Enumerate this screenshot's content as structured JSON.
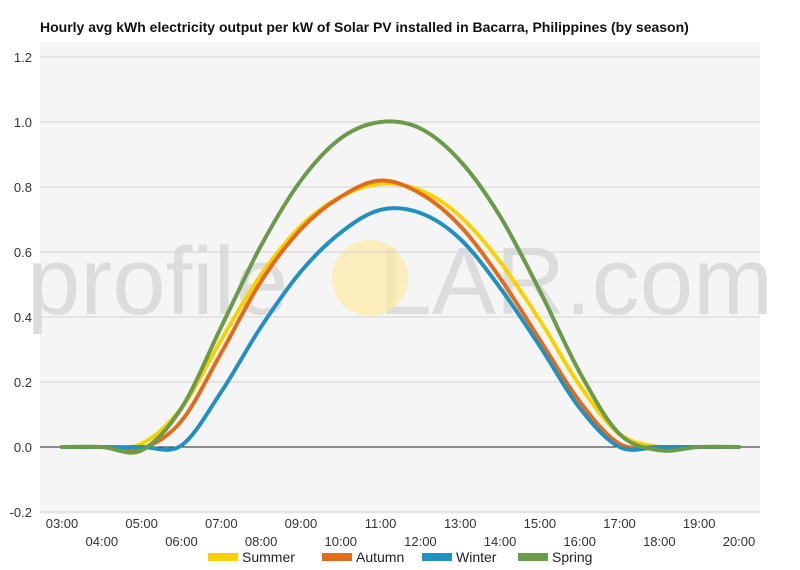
{
  "chart_data": {
    "type": "line",
    "title": "Hourly avg kWh electricity output per kW of Solar PV installed in Bacarra, Philippines (by season)",
    "xlabel": "",
    "ylabel": "",
    "ylim": [
      -0.2,
      1.2
    ],
    "yticks": [
      -0.2,
      0.0,
      0.2,
      0.4,
      0.6,
      0.8,
      1.0,
      1.2
    ],
    "x": [
      3,
      4,
      5,
      6,
      7,
      8,
      9,
      10,
      11,
      12,
      13,
      14,
      15,
      16,
      17,
      18,
      19,
      20
    ],
    "xtick_labels": [
      "03:00",
      "04:00",
      "05:00",
      "06:00",
      "07:00",
      "08:00",
      "09:00",
      "10:00",
      "11:00",
      "12:00",
      "13:00",
      "14:00",
      "15:00",
      "16:00",
      "17:00",
      "18:00",
      "19:00",
      "20:00"
    ],
    "grid": true,
    "legend_position": "bottom",
    "watermark": "profileSOLAR.com",
    "series": [
      {
        "name": "Summer",
        "color": "#f5d200",
        "values": [
          0.0,
          0.0,
          0.01,
          0.12,
          0.33,
          0.53,
          0.68,
          0.77,
          0.81,
          0.79,
          0.71,
          0.57,
          0.39,
          0.19,
          0.04,
          0.0,
          0.0,
          0.0
        ]
      },
      {
        "name": "Autumn",
        "color": "#e06c1e",
        "values": [
          0.0,
          0.0,
          -0.005,
          0.08,
          0.29,
          0.51,
          0.67,
          0.77,
          0.82,
          0.78,
          0.68,
          0.52,
          0.33,
          0.14,
          0.01,
          0.0,
          0.0,
          0.0
        ]
      },
      {
        "name": "Winter",
        "color": "#2291c0",
        "values": [
          0.0,
          0.0,
          0.0,
          0.005,
          0.17,
          0.37,
          0.54,
          0.66,
          0.73,
          0.72,
          0.64,
          0.49,
          0.31,
          0.12,
          0.0,
          0.0,
          0.0,
          0.0
        ]
      },
      {
        "name": "Spring",
        "color": "#6a9a4a",
        "values": [
          0.0,
          0.0,
          -0.01,
          0.12,
          0.37,
          0.62,
          0.82,
          0.95,
          1.0,
          0.98,
          0.88,
          0.71,
          0.48,
          0.23,
          0.04,
          -0.01,
          0.0,
          0.0
        ]
      }
    ]
  }
}
